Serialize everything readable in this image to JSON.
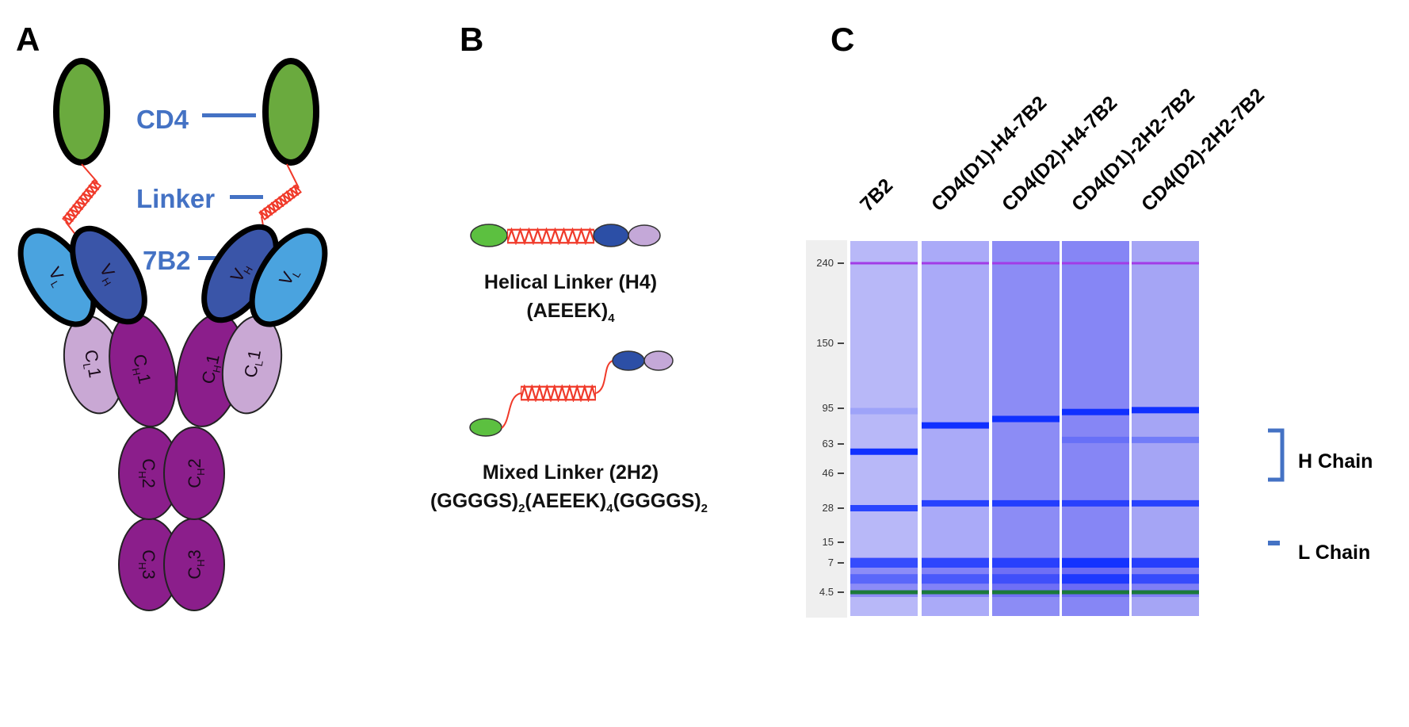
{
  "colors": {
    "cd4": "#6aaa3e",
    "vh": "#3a55a8",
    "vl": "#4aa3df",
    "cl": "#c9a8d4",
    "ch": "#8b1e8b",
    "linker": "#f03a2a",
    "label_blue": "#4472c4"
  },
  "panel_a": {
    "letter": "A",
    "labels": {
      "cd4": "CD4",
      "linker": "Linker",
      "antibody": "7B2"
    },
    "domains": {
      "vl": {
        "main": "V",
        "sub": "L",
        "suffix": ""
      },
      "vh": {
        "main": "V",
        "sub": "H",
        "suffix": ""
      },
      "cl1": {
        "main": "C",
        "sub": "L",
        "suffix": "1"
      },
      "ch1": {
        "main": "C",
        "sub": "H",
        "suffix": "1"
      },
      "ch2": {
        "main": "C",
        "sub": "H",
        "suffix": "2"
      },
      "ch3": {
        "main": "C",
        "sub": "H",
        "suffix": "3"
      }
    }
  },
  "panel_b": {
    "letter": "B",
    "helical": {
      "name": "Helical Linker (H4)",
      "formula": [
        "(AEEEK)",
        "4"
      ]
    },
    "mixed": {
      "name": "Mixed Linker (2H2)",
      "formula": [
        "(GGGGS)",
        "2",
        "(AEEEK)",
        "4",
        "(GGGGS)",
        "2"
      ]
    }
  },
  "panel_c": {
    "letter": "C",
    "ladder_kda": [
      "240",
      "150",
      "95",
      "63",
      "46",
      "28",
      "15",
      "7",
      "4.5"
    ],
    "markers": {
      "upper_kda": 240,
      "lower_kda": 4.5,
      "upper_color": "#a23ce6",
      "lower_color": "#1b7a3a"
    },
    "lanes": [
      {
        "name": "7B2",
        "background": "#b8b8f8",
        "bands": [
          {
            "kda": 58,
            "strength": 1.0
          },
          {
            "kda": 28,
            "strength": 0.85
          },
          {
            "kda": 92,
            "strength": 0.15
          },
          {
            "kda": 7,
            "strength": 0.7
          },
          {
            "kda": 5.5,
            "strength": 0.4
          }
        ]
      },
      {
        "name": "CD4(D1)-H4-7B2",
        "background": "#aaaaf8",
        "bands": [
          {
            "kda": 78,
            "strength": 1.0
          },
          {
            "kda": 30,
            "strength": 0.85
          },
          {
            "kda": 7,
            "strength": 0.75
          },
          {
            "kda": 5.5,
            "strength": 0.5
          }
        ]
      },
      {
        "name": "CD4(D2)-H4-7B2",
        "background": "#8c8cf5",
        "bands": [
          {
            "kda": 84,
            "strength": 1.0
          },
          {
            "kda": 30,
            "strength": 0.85
          },
          {
            "kda": 7,
            "strength": 0.75
          },
          {
            "kda": 5.5,
            "strength": 0.5
          }
        ]
      },
      {
        "name": "CD4(D1)-2H2-7B2",
        "background": "#8686f5",
        "bands": [
          {
            "kda": 91,
            "strength": 1.0
          },
          {
            "kda": 66,
            "strength": 0.25
          },
          {
            "kda": 30,
            "strength": 0.8
          },
          {
            "kda": 7,
            "strength": 0.95
          },
          {
            "kda": 5.5,
            "strength": 0.85
          }
        ]
      },
      {
        "name": "CD4(D2)-2H2-7B2",
        "background": "#a5a5f5",
        "bands": [
          {
            "kda": 93,
            "strength": 1.0
          },
          {
            "kda": 66,
            "strength": 0.35
          },
          {
            "kda": 30,
            "strength": 0.85
          },
          {
            "kda": 7,
            "strength": 0.8
          },
          {
            "kda": 5.5,
            "strength": 0.65
          }
        ]
      }
    ],
    "annotations": {
      "heavy": "H Chain",
      "light": "L Chain"
    }
  }
}
